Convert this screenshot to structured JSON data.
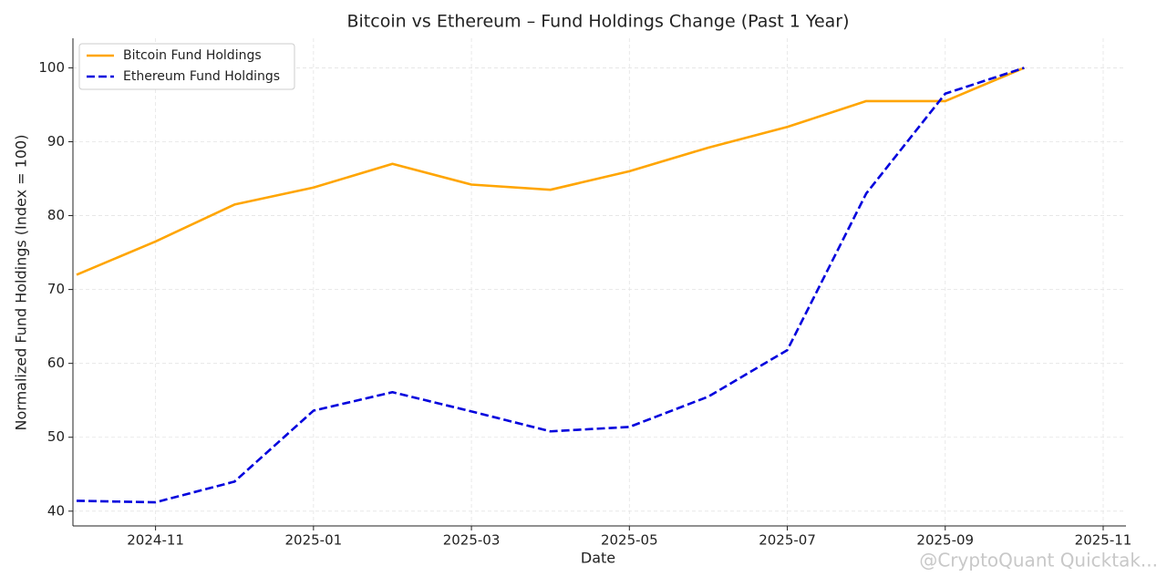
{
  "chart_data": {
    "type": "line",
    "title": "Bitcoin vs Ethereum – Fund Holdings Change (Past 1 Year)",
    "xlabel": "Date",
    "ylabel": "Normalized Fund Holdings (Index = 100)",
    "watermark": "@CryptoQuant Quicktak...",
    "x": [
      "2024-10",
      "2024-11",
      "2024-12",
      "2025-01",
      "2025-02",
      "2025-03",
      "2025-04",
      "2025-05",
      "2025-06",
      "2025-07",
      "2025-08",
      "2025-09",
      "2025-10"
    ],
    "series": [
      {
        "name": "Bitcoin Fund Holdings",
        "color": "#ffa500",
        "dash": false,
        "values": [
          72,
          76.5,
          81.5,
          83.8,
          87,
          84.2,
          83.5,
          86,
          89.2,
          92,
          95.5,
          95.5,
          100
        ]
      },
      {
        "name": "Ethereum Fund Holdings",
        "color": "#0000dd",
        "dash": true,
        "values": [
          41.4,
          41.2,
          44,
          53.6,
          56.1,
          53.5,
          50.8,
          51.4,
          55.5,
          61.8,
          83,
          96.5,
          100
        ]
      }
    ],
    "xlim": [
      "2024-10",
      "2025-11"
    ],
    "xticks": [
      "2024-11",
      "2025-01",
      "2025-03",
      "2025-05",
      "2025-07",
      "2025-09",
      "2025-11"
    ],
    "ylim": [
      38,
      104
    ],
    "yticks": [
      40,
      50,
      60,
      70,
      80,
      90,
      100
    ],
    "grid": true,
    "legend": "upper-left"
  }
}
